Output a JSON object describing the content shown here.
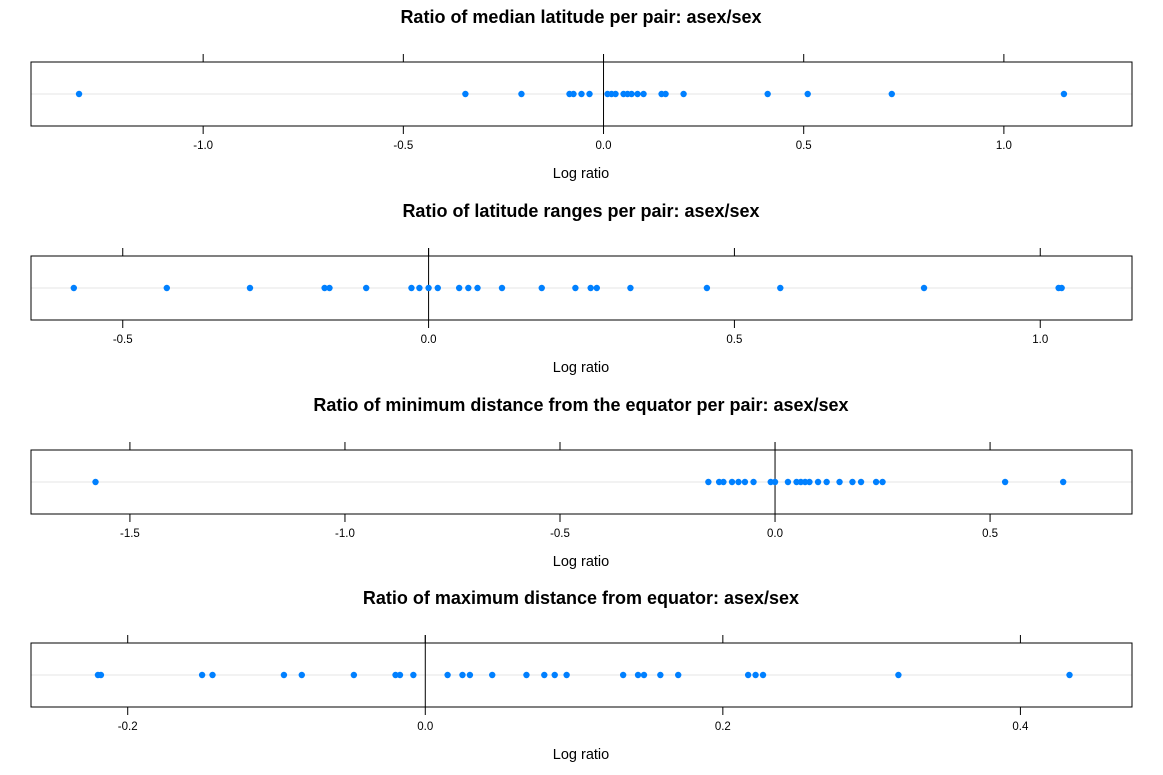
{
  "chart_data": [
    {
      "type": "scatter",
      "title": "Ratio of median latitude per pair: asex/sex",
      "xlabel": "Log ratio",
      "ylabel": "",
      "xlim": [
        -1.43,
        1.32
      ],
      "ticks": [
        -1.0,
        -0.5,
        0.0,
        0.5,
        1.0
      ],
      "tick_labels": [
        "-1.0",
        "-0.5",
        "0.0",
        "0.5",
        "1.0"
      ],
      "reference_line": 0,
      "grid": true,
      "point_color": "#0080ff",
      "values": [
        -1.31,
        -0.345,
        -0.205,
        -0.085,
        -0.075,
        -0.055,
        -0.035,
        0.01,
        0.02,
        0.03,
        0.05,
        0.06,
        0.07,
        0.085,
        0.1,
        0.145,
        0.155,
        0.2,
        0.41,
        0.51,
        0.72,
        1.15
      ]
    },
    {
      "type": "scatter",
      "title": "Ratio of latitude ranges per pair: asex/sex",
      "xlabel": "Log ratio",
      "ylabel": "",
      "xlim": [
        -0.65,
        1.15
      ],
      "ticks": [
        -0.5,
        0.0,
        0.5,
        1.0
      ],
      "tick_labels": [
        "-0.5",
        "0.0",
        "0.5",
        "1.0"
      ],
      "reference_line": 0,
      "grid": true,
      "point_color": "#0080ff",
      "values": [
        -0.58,
        -0.428,
        -0.292,
        -0.17,
        -0.162,
        -0.102,
        -0.028,
        -0.015,
        0.0,
        0.015,
        0.05,
        0.065,
        0.08,
        0.12,
        0.185,
        0.24,
        0.265,
        0.275,
        0.33,
        0.455,
        0.575,
        0.81,
        1.03,
        1.035
      ]
    },
    {
      "type": "scatter",
      "title": "Ratio of minimum distance from the equator per pair: asex/sex",
      "xlabel": "Log ratio",
      "ylabel": "",
      "xlim": [
        -1.73,
        0.83
      ],
      "ticks": [
        -1.5,
        -1.0,
        -0.5,
        0.0,
        0.5
      ],
      "tick_labels": [
        "-1.5",
        "-1.0",
        "-0.5",
        "0.0",
        "0.5"
      ],
      "reference_line": 0,
      "grid": true,
      "point_color": "#0080ff",
      "values": [
        -1.58,
        -0.155,
        -0.13,
        -0.12,
        -0.1,
        -0.085,
        -0.07,
        -0.05,
        -0.01,
        0.0,
        0.03,
        0.05,
        0.06,
        0.07,
        0.08,
        0.1,
        0.12,
        0.15,
        0.18,
        0.2,
        0.235,
        0.25,
        0.535,
        0.67
      ]
    },
    {
      "type": "scatter",
      "title": "Ratio of maximum distance from equator: asex/sex",
      "xlabel": "Log ratio",
      "ylabel": "",
      "xlim": [
        -0.265,
        0.475
      ],
      "ticks": [
        -0.2,
        0.0,
        0.2,
        0.4
      ],
      "tick_labels": [
        "-0.2",
        "0.0",
        "0.2",
        "0.4"
      ],
      "reference_line": 0,
      "grid": true,
      "point_color": "#0080ff",
      "values": [
        -0.22,
        -0.218,
        -0.15,
        -0.143,
        -0.095,
        -0.083,
        -0.048,
        -0.02,
        -0.017,
        -0.008,
        0.015,
        0.025,
        0.03,
        0.045,
        0.068,
        0.08,
        0.087,
        0.095,
        0.133,
        0.143,
        0.147,
        0.158,
        0.17,
        0.217,
        0.222,
        0.227,
        0.318,
        0.433
      ]
    }
  ]
}
